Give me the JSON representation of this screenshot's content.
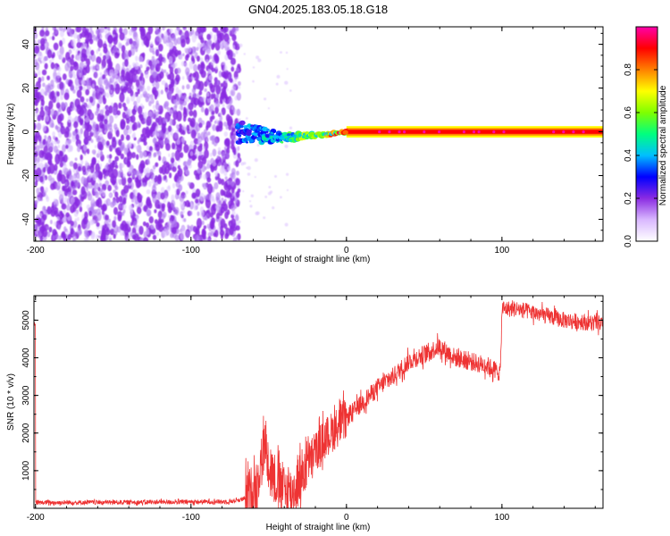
{
  "title": "GN04.2025.183.05.18.G18",
  "chart_data": [
    {
      "type": "heatmap",
      "xlabel": "Height of straight line (km)",
      "ylabel": "Frequency (Hz)",
      "xlim": [
        -201,
        165
      ],
      "ylim": [
        -50,
        48
      ],
      "x_ticks": [
        -200,
        -100,
        0,
        100
      ],
      "y_ticks": [
        -40,
        -20,
        0,
        20,
        40
      ],
      "colorbar": {
        "label": "Normalized spectral amplitude",
        "range": [
          0,
          1
        ],
        "ticks": [
          0.0,
          0.2,
          0.4,
          0.6,
          0.8
        ],
        "colormap": [
          "#ffffff",
          "#d9b8ff",
          "#8a2be2",
          "#0000ff",
          "#00bfff",
          "#00ff7f",
          "#7fff00",
          "#ffff00",
          "#ff8000",
          "#ff0000",
          "#ff00aa"
        ]
      },
      "noise_region": {
        "x_range": [
          -200,
          -70
        ],
        "freq_range": [
          -50,
          48
        ],
        "amplitude": 0.1
      },
      "signal_track": [
        {
          "x": -70,
          "freq": 0.0,
          "spread": 5,
          "amp": 0.35
        },
        {
          "x": -60,
          "freq": -1.0,
          "spread": 4,
          "amp": 0.4
        },
        {
          "x": -50,
          "freq": -2.0,
          "spread": 3,
          "amp": 0.45
        },
        {
          "x": -40,
          "freq": -3.0,
          "spread": 2,
          "amp": 0.5
        },
        {
          "x": -30,
          "freq": -2.0,
          "spread": 1.5,
          "amp": 0.6
        },
        {
          "x": -20,
          "freq": -1.5,
          "spread": 1,
          "amp": 0.7
        },
        {
          "x": -10,
          "freq": -1.0,
          "spread": 0.8,
          "amp": 0.8
        },
        {
          "x": 0,
          "freq": 0.0,
          "spread": 0.5,
          "amp": 0.9
        },
        {
          "x": 165,
          "freq": 0.0,
          "spread": 0.5,
          "amp": 0.95
        }
      ]
    },
    {
      "type": "line",
      "xlabel": "Height of straight line (km)",
      "ylabel": "SNR (10 * v/v)",
      "xlim": [
        -201,
        165
      ],
      "ylim": [
        0,
        5650
      ],
      "x_ticks": [
        -200,
        -100,
        0,
        100
      ],
      "y_ticks": [
        1000,
        2000,
        3000,
        4000,
        5000
      ],
      "series": [
        {
          "color": "#ee3333",
          "x": [
            -200,
            -150,
            -100,
            -75,
            -65,
            -58,
            -52,
            -50,
            -45,
            -40,
            -35,
            -30,
            -25,
            -20,
            -15,
            -10,
            -5,
            0,
            10,
            20,
            30,
            40,
            50,
            60,
            70,
            80,
            90,
            99,
            100,
            110,
            120,
            140,
            165
          ],
          "y": [
            150,
            160,
            170,
            180,
            250,
            600,
            1800,
            1200,
            700,
            500,
            400,
            800,
            1200,
            1500,
            1800,
            2000,
            2200,
            2400,
            2800,
            3200,
            3500,
            3900,
            4100,
            4300,
            4000,
            3900,
            3800,
            3600,
            5300,
            5300,
            5200,
            5000,
            4900
          ]
        }
      ]
    }
  ]
}
